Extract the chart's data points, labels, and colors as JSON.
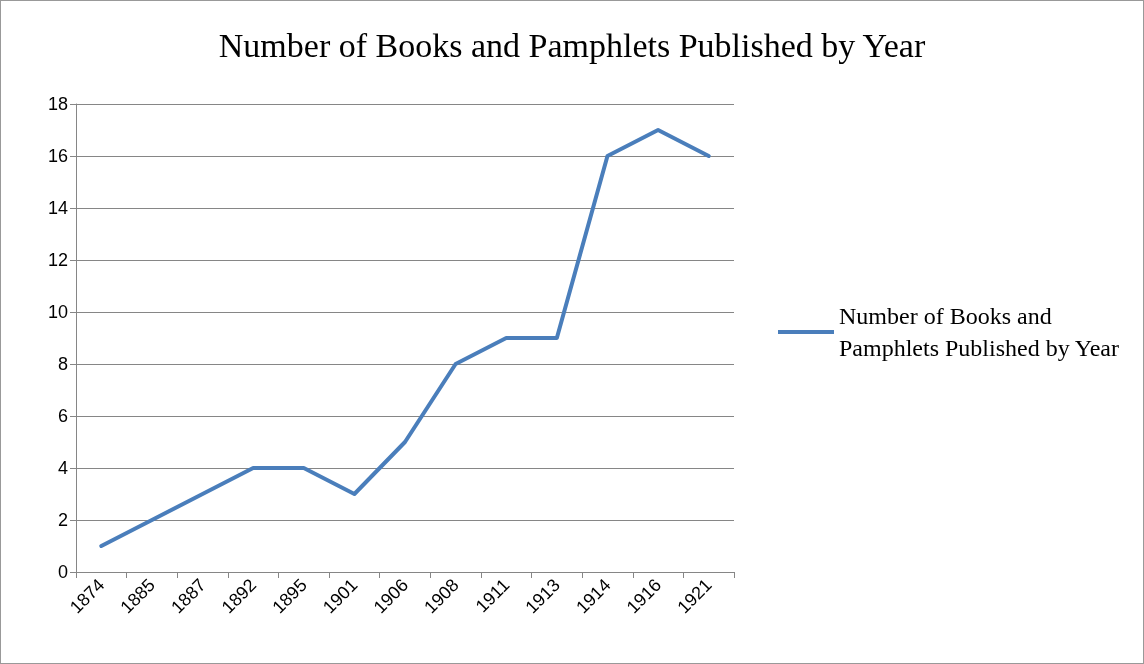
{
  "chart_data": {
    "type": "line",
    "title": "Number of Books and Pamphlets Published by Year",
    "categories": [
      "1874",
      "1885",
      "1887",
      "1892",
      "1895",
      "1901",
      "1906",
      "1908",
      "1911",
      "1913",
      "1914",
      "1916",
      "1921"
    ],
    "series": [
      {
        "name": "Number of Books and Pamphlets Published by Year",
        "color": "#4a7ebb",
        "values": [
          1,
          2,
          3,
          4,
          4,
          3,
          5,
          8,
          9,
          9,
          16,
          17,
          16
        ]
      }
    ],
    "ylim": [
      0,
      18
    ],
    "yticks": [
      0,
      2,
      4,
      6,
      8,
      10,
      12,
      14,
      16,
      18
    ],
    "grid": "y",
    "legend": "right",
    "marker": "none",
    "line_style": "solid"
  }
}
